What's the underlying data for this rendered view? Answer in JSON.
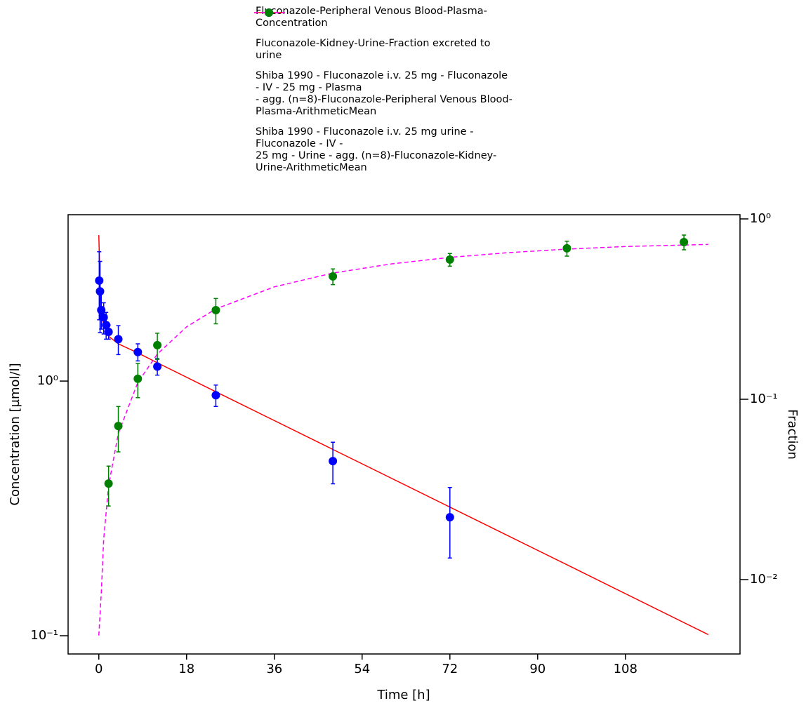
{
  "chart_data": {
    "type": "line",
    "xlabel": "Time [h]",
    "ylabel": "Concentration [µmol/l]",
    "y2label": "Fraction",
    "xlim": [
      -6.3,
      131.5
    ],
    "xticks": [
      0,
      18,
      36,
      54,
      72,
      90,
      108
    ],
    "ylim": [
      0.0848,
      4.5
    ],
    "yticks": [
      {
        "value": 0.1,
        "label": "10⁻¹"
      },
      {
        "value": 1,
        "label": "10⁰"
      }
    ],
    "y2lim": [
      0.00387,
      1.055
    ],
    "y2ticks": [
      {
        "value": 0.01,
        "label": "10⁻²"
      },
      {
        "value": 0.1,
        "label": "10⁻¹"
      },
      {
        "value": 1,
        "label": "10⁰"
      }
    ],
    "log_y": true,
    "log_y2": true,
    "legend": "top",
    "series": [
      {
        "name": "Fluconazole-Peripheral Venous Blood-Plasma-\nConcentration",
        "color": "#ff0000",
        "style": "solid",
        "x": [
          0,
          0.25,
          0.5,
          1,
          2,
          4,
          8,
          12,
          24,
          48,
          72,
          96,
          125
        ],
        "values": [
          3.74,
          2.4,
          1.95,
          1.65,
          1.5,
          1.4,
          1.29,
          1.18,
          0.908,
          0.539,
          0.32,
          0.19,
          0.101
        ]
      },
      {
        "name": "Fluconazole-Kidney-Urine-Fraction excreted to\nurine",
        "color": "#ff00ff",
        "style": "dashed",
        "axis": "y2",
        "x": [
          0,
          0.5,
          1,
          2,
          4,
          8,
          12,
          18,
          24,
          36,
          48,
          60,
          72,
          84,
          96,
          108,
          125
        ],
        "values": [
          0.0049,
          0.0084,
          0.0168,
          0.0331,
          0.0647,
          0.124,
          0.178,
          0.252,
          0.317,
          0.42,
          0.501,
          0.563,
          0.612,
          0.65,
          0.68,
          0.703,
          0.722
        ]
      },
      {
        "name": "Shiba 1990 - Fluconazole i.v. 25 mg - Fluconazole\n- IV - 25 mg - Plasma\n- agg. (n=8)-Fluconazole-Peripheral Venous Blood-\nPlasma-ArithmeticMean",
        "color": "#0000ff",
        "style": "markers",
        "x": [
          0.083,
          0.25,
          0.5,
          1,
          1.5,
          2,
          4,
          8,
          12,
          24,
          48,
          72
        ],
        "values": [
          2.48,
          2.25,
          1.9,
          1.78,
          1.66,
          1.56,
          1.46,
          1.3,
          1.14,
          0.88,
          0.485,
          0.292
        ],
        "errors": [
          0.74,
          0.7,
          0.3,
          0.25,
          0.2,
          0.1,
          0.19,
          0.1,
          0.085,
          0.085,
          0.09,
          0.09
        ]
      },
      {
        "name": "Shiba 1990 - Fluconazole i.v. 25 mg urine -\nFluconazole - IV -\n25 mg - Urine - agg. (n=8)-Fluconazole-Kidney-\nUrine-ArithmeticMean",
        "color": "#008000",
        "style": "markers",
        "axis": "y2",
        "x": [
          2,
          4,
          8,
          12,
          24,
          48,
          72,
          96,
          120
        ],
        "values": [
          0.0341,
          0.0711,
          0.13,
          0.1995,
          0.312,
          0.48,
          0.595,
          0.687,
          0.744
        ],
        "errors": [
          0.0085,
          0.02,
          0.028,
          0.033,
          0.05,
          0.048,
          0.048,
          0.065,
          0.07
        ]
      }
    ]
  }
}
